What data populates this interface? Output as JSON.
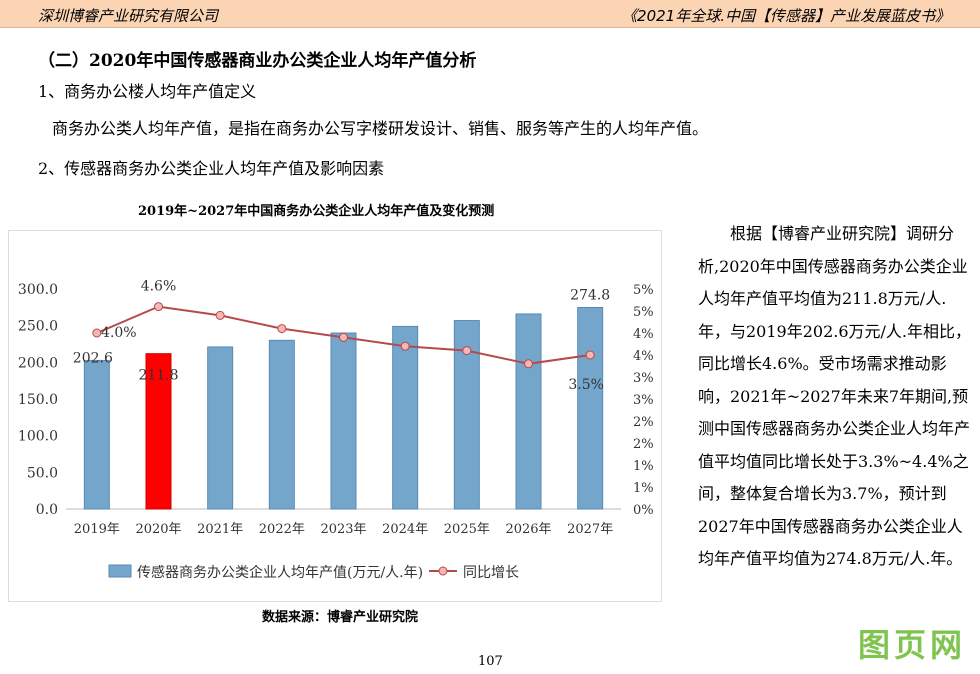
{
  "header": {
    "left": "深圳博睿产业研究有限公司",
    "right": "《2021年全球.中国【传感器】产业发展蓝皮书》"
  },
  "section_title": "（二）2020年中国传感器商业办公类企业人均年产值分析",
  "sub1": "1、商务办公楼人均年产值定义",
  "def": "商务办公类人均年产值，是指在商务办公写字楼研发设计、销售、服务等产生的人均年产值。",
  "sub2": "2、传感器商务办公类企业人均年产值及影响因素",
  "source": "数据来源：博睿产业研究院",
  "side_text": "根据【博睿产业研究院】调研分析,2020年中国传感器商务办公类企业人均年产值平均值为211.8万元/人.年，与2019年202.6万元/人.年相比，同比增长4.6%。受市场需求推动影响，2021年~2027年未来7年期间,预测中国传感器商务办公类企业人均年产值平均值同比增长处于3.3%~4.4%之间，整体复合增长为3.7%，预计到2027年中国传感器商务办公类企业人均年产值平均值为274.8万元/人.年。",
  "page_number": "107",
  "watermark": "图页网",
  "chart_data": {
    "type": "bar",
    "title": "2019年~2027年中国商务办公类企业人均年产值及变化预测",
    "categories": [
      "2019年",
      "2020年",
      "2021年",
      "2022年",
      "2023年",
      "2024年",
      "2025年",
      "2026年",
      "2027年"
    ],
    "series": [
      {
        "name": "传感器商务办公类企业人均年产值(万元/人.年)",
        "type": "bar",
        "axis": "left",
        "values": [
          202.6,
          211.8,
          221.0,
          230.0,
          240.0,
          249.0,
          257.0,
          266.0,
          274.8
        ],
        "color": "#74a6cc",
        "highlight": {
          "index": 1,
          "color": "#ff0000"
        }
      },
      {
        "name": "同比增长",
        "type": "line",
        "axis": "right",
        "values": [
          4.0,
          4.6,
          4.4,
          4.1,
          3.9,
          3.7,
          3.6,
          3.3,
          3.5
        ],
        "color": "#b54a4a"
      }
    ],
    "data_labels": [
      {
        "series": 0,
        "index": 0,
        "text": "202.6"
      },
      {
        "series": 0,
        "index": 1,
        "text": "211.8"
      },
      {
        "series": 0,
        "index": 8,
        "text": "274.8"
      },
      {
        "series": 1,
        "index": 0,
        "text": "4.0%"
      },
      {
        "series": 1,
        "index": 1,
        "text": "4.6%"
      },
      {
        "series": 1,
        "index": 8,
        "text": "3.5%"
      }
    ],
    "ylim": [
      0,
      300
    ],
    "yticks": [
      "0.0",
      "50.0",
      "100.0",
      "150.0",
      "200.0",
      "250.0",
      "300.0"
    ],
    "y2lim": [
      0,
      5
    ],
    "y2ticks": [
      "0%",
      "1%",
      "1%",
      "2%",
      "2%",
      "3%",
      "3%",
      "4%",
      "4%",
      "5%",
      "5%"
    ],
    "legend": "bottom"
  }
}
